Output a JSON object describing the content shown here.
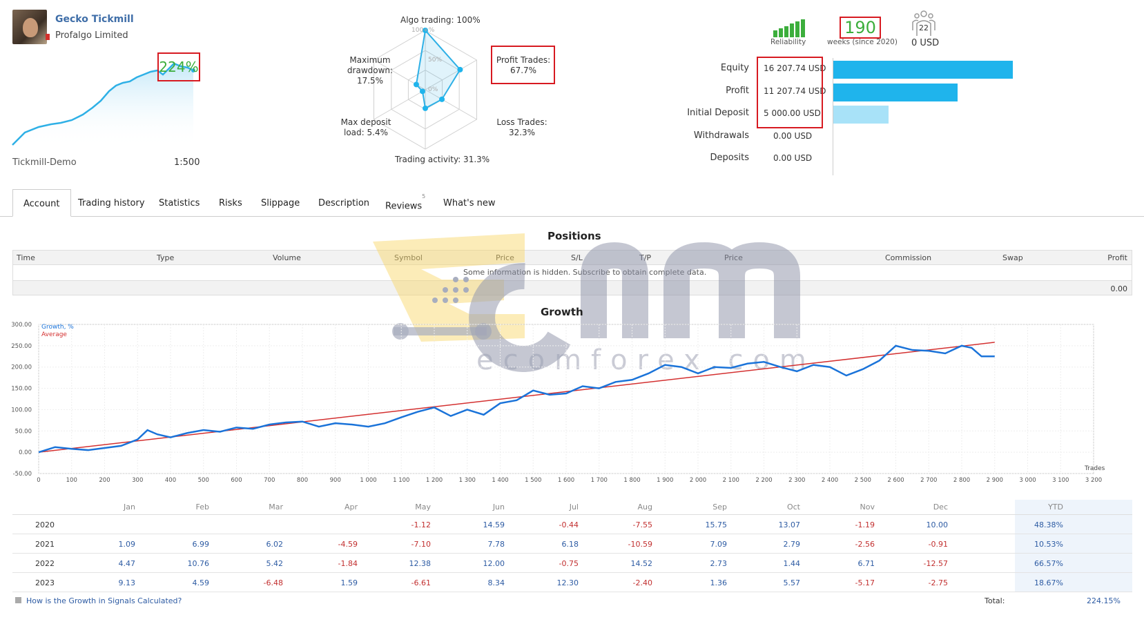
{
  "profile": {
    "author": "Gecko Tickmill",
    "company": "Profalgo Limited",
    "growth": "224%",
    "server": "Tickmill-Demo",
    "leverage": "1:500"
  },
  "radar": {
    "algo_trading": "Algo trading: 100%",
    "profit_trades_label": "Profit Trades:",
    "profit_trades_value": "67.7%",
    "loss_trades_label": "Loss Trades:",
    "loss_trades_value": "32.3%",
    "trading_activity": "Trading activity: 31.3%",
    "max_deposit_load_label": "Max deposit",
    "max_deposit_load_value": "load: 5.4%",
    "max_drawdown_label1": "Maximum",
    "max_drawdown_label2": "drawdown:",
    "max_drawdown_value": "17.5%",
    "ring_labels": [
      "100+%",
      "50%",
      "0%"
    ],
    "values": {
      "algo": 100,
      "profit": 67.7,
      "loss": 32.3,
      "activity": 31.3,
      "deposit": 5.4,
      "drawdown": 17.5
    }
  },
  "stats": {
    "reliability_label": "Reliability",
    "weeks": "190",
    "weeks_label": "weeks (since 2020)",
    "subscribers": "22",
    "subscribers_usd": "0 USD"
  },
  "balance": {
    "rows": [
      {
        "label": "Equity",
        "value": "16 207.74 USD",
        "amount": 16207.74,
        "color": "#1fb4ec"
      },
      {
        "label": "Profit",
        "value": "11 207.74 USD",
        "amount": 11207.74,
        "color": "#1fb4ec"
      },
      {
        "label": "Initial Deposit",
        "value": "5 000.00 USD",
        "amount": 5000,
        "color": "#a8e2f8"
      },
      {
        "label": "Withdrawals",
        "value": "0.00 USD",
        "amount": 0,
        "color": "#1fb4ec"
      },
      {
        "label": "Deposits",
        "value": "0.00 USD",
        "amount": 0,
        "color": "#1fb4ec"
      }
    ]
  },
  "tabs": [
    {
      "label": "Account",
      "active": true
    },
    {
      "label": "Trading history"
    },
    {
      "label": "Statistics"
    },
    {
      "label": "Risks"
    },
    {
      "label": "Slippage"
    },
    {
      "label": "Description"
    },
    {
      "label": "Reviews",
      "badge": "5"
    },
    {
      "label": "What's new"
    }
  ],
  "positions": {
    "title": "Positions",
    "columns": [
      "Time",
      "Type",
      "Volume",
      "Symbol",
      "Price",
      "S/L",
      "T/P",
      "Price",
      "Commission",
      "Swap",
      "Profit"
    ],
    "message": "Some information is hidden. Subscribe to obtain complete data.",
    "total": "0.00"
  },
  "watermark": "ecomforex.com",
  "chart_data": {
    "type": "line",
    "title": "Growth",
    "legend": [
      "Growth, %",
      "Average"
    ],
    "xlabel": "Trades",
    "xlim": [
      0,
      3200
    ],
    "ylim": [
      -50,
      300
    ],
    "y_ticks": [
      "300.00",
      "250.00",
      "200.00",
      "150.00",
      "100.00",
      "50.00",
      "0.00",
      "-50.00"
    ],
    "x_ticks": [
      "0",
      "100",
      "200",
      "300",
      "400",
      "500",
      "600",
      "700",
      "800",
      "900",
      "1 000",
      "1 100",
      "1 200",
      "1 300",
      "1 400",
      "1 500",
      "1 600",
      "1 700",
      "1 800",
      "1 900",
      "2 000",
      "2 100",
      "2 200",
      "2 300",
      "2 400",
      "2 500",
      "2 600",
      "2 700",
      "2 800",
      "2 900",
      "3 000",
      "3 100",
      "3 200"
    ],
    "series": [
      {
        "name": "Growth, %",
        "color": "#1a73d9",
        "x": [
          0,
          50,
          100,
          150,
          200,
          250,
          300,
          330,
          360,
          400,
          450,
          500,
          550,
          600,
          650,
          700,
          750,
          800,
          850,
          900,
          950,
          1000,
          1050,
          1100,
          1150,
          1200,
          1250,
          1300,
          1350,
          1400,
          1450,
          1500,
          1550,
          1600,
          1650,
          1700,
          1750,
          1800,
          1850,
          1900,
          1950,
          2000,
          2050,
          2100,
          2150,
          2200,
          2250,
          2300,
          2350,
          2400,
          2450,
          2500,
          2550,
          2600,
          2650,
          2700,
          2750,
          2800,
          2830,
          2860,
          2900
        ],
        "y": [
          0,
          12,
          8,
          5,
          10,
          15,
          30,
          52,
          42,
          35,
          45,
          52,
          48,
          58,
          55,
          65,
          70,
          72,
          60,
          68,
          65,
          60,
          68,
          82,
          95,
          105,
          85,
          100,
          88,
          115,
          122,
          145,
          135,
          138,
          155,
          150,
          165,
          170,
          185,
          205,
          200,
          185,
          200,
          198,
          208,
          212,
          200,
          190,
          205,
          200,
          180,
          195,
          215,
          250,
          240,
          238,
          232,
          250,
          245,
          225,
          225
        ]
      },
      {
        "name": "Average",
        "color": "#d32f2f",
        "x": [
          0,
          2900
        ],
        "y": [
          0,
          258
        ]
      }
    ]
  },
  "monthly": {
    "columns": [
      "Jan",
      "Feb",
      "Mar",
      "Apr",
      "May",
      "Jun",
      "Jul",
      "Aug",
      "Sep",
      "Oct",
      "Nov",
      "Dec",
      "YTD"
    ],
    "rows": [
      {
        "year": "2020",
        "values": [
          "",
          "",
          "",
          "",
          "-1.12",
          "14.59",
          "-0.44",
          "-7.55",
          "15.75",
          "13.07",
          "-1.19",
          "10.00",
          "48.38%"
        ]
      },
      {
        "year": "2021",
        "values": [
          "1.09",
          "6.99",
          "6.02",
          "-4.59",
          "-7.10",
          "7.78",
          "6.18",
          "-10.59",
          "7.09",
          "2.79",
          "-2.56",
          "-0.91",
          "10.53%"
        ]
      },
      {
        "year": "2022",
        "values": [
          "4.47",
          "10.76",
          "5.42",
          "-1.84",
          "12.38",
          "12.00",
          "-0.75",
          "14.52",
          "2.73",
          "1.44",
          "6.71",
          "-12.57",
          "66.57%"
        ]
      },
      {
        "year": "2023",
        "values": [
          "9.13",
          "4.59",
          "-6.48",
          "1.59",
          "-6.61",
          "8.34",
          "12.30",
          "-2.40",
          "1.36",
          "5.57",
          "-5.17",
          "-2.75",
          "18.67%"
        ]
      }
    ],
    "help_link": "How is the Growth in Signals Calculated?",
    "total_label": "Total:",
    "total_value": "224.15%"
  }
}
